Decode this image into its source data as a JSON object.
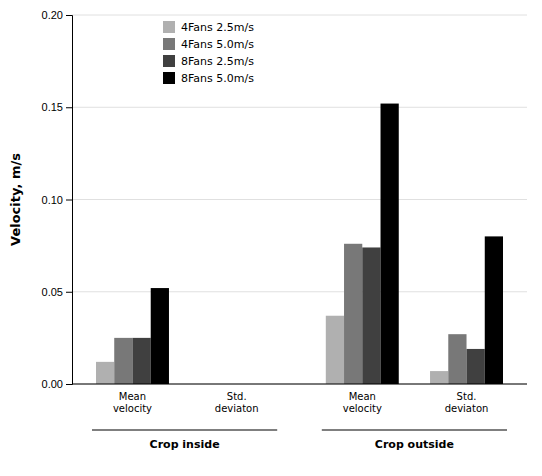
{
  "chart_data": {
    "type": "bar",
    "ylabel": "Velocity, m/s",
    "categories": [
      "Mean\nvelocity",
      "Std.\ndeviaton",
      "Mean\nvelocity",
      "Std.\ndeviaton"
    ],
    "group_labels": [
      "Crop inside",
      "Crop outside"
    ],
    "series": [
      {
        "name": "4Fans 2.5m/s",
        "color": "#b0b0b0",
        "values": [
          0.012,
          0.0,
          0.037,
          0.007
        ]
      },
      {
        "name": "4Fans 5.0m/s",
        "color": "#787878",
        "values": [
          0.025,
          0.0,
          0.076,
          0.027
        ]
      },
      {
        "name": "8Fans 2.5m/s",
        "color": "#404040",
        "values": [
          0.025,
          0.0,
          0.074,
          0.019
        ]
      },
      {
        "name": "8Fans 5.0m/s",
        "color": "#000000",
        "values": [
          0.052,
          0.0,
          0.152,
          0.08
        ]
      }
    ],
    "ylim": [
      0,
      0.2
    ],
    "yticks": [
      {
        "value": 0,
        "label": "0.00"
      },
      0.05,
      {
        "value": 0.1,
        "label": "0.10"
      },
      0.15,
      {
        "value": 0.2,
        "label": "0.20"
      }
    ],
    "grid": true,
    "legend": "upper left"
  }
}
